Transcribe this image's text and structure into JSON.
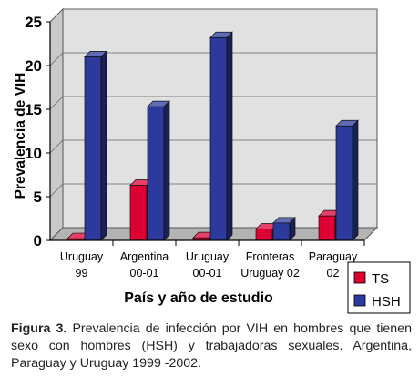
{
  "chart_data": {
    "type": "bar",
    "ylabel": "Prevalencia de VIH",
    "xlabel": "País y año de estudio",
    "ylim": [
      0,
      25
    ],
    "yticks": [
      0,
      5,
      10,
      15,
      20,
      25
    ],
    "grid": true,
    "legend_position": "bottom-right",
    "categories": [
      [
        "Uruguay",
        "99"
      ],
      [
        "Argentina",
        "00-01"
      ],
      [
        "Uruguay",
        "00-01"
      ],
      [
        "Fronteras",
        "Uruguay 02"
      ],
      [
        "Paraguay",
        "02"
      ]
    ],
    "series": [
      {
        "name": "TS",
        "color": "#dd0033",
        "values": [
          0.2,
          6.3,
          0.3,
          1.3,
          2.8
        ]
      },
      {
        "name": "HSH",
        "color": "#2b3a9c",
        "values": [
          21.0,
          15.3,
          23.2,
          2.0,
          13.1
        ]
      }
    ]
  },
  "caption": {
    "label": "Figura 3.",
    "text": " Prevalencia de infección por VIH en hombres que tienen sexo con hombres (HSH) y trabajadoras sexuales. Argentina, Paraguay y Uruguay 1999 -2002."
  }
}
